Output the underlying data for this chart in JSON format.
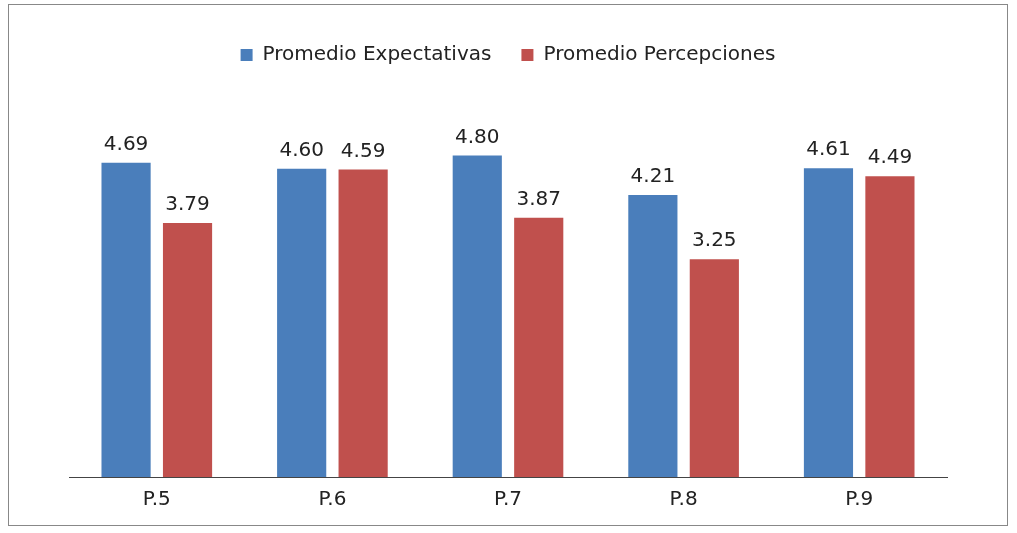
{
  "chart_data": {
    "type": "bar",
    "categories": [
      "P.5",
      "P.6",
      "P.7",
      "P.8",
      "P.9"
    ],
    "series": [
      {
        "name": "Promedio Expectativas",
        "color": "#4a7ebb",
        "values": [
          4.69,
          4.6,
          4.8,
          4.21,
          4.61
        ],
        "value_labels": [
          "4.69",
          "4.60",
          "4.80",
          "4.21",
          "4.61"
        ]
      },
      {
        "name": "Promedio Percepciones",
        "color": "#c0504d",
        "values": [
          3.79,
          4.59,
          3.87,
          3.25,
          4.49
        ],
        "value_labels": [
          "3.79",
          "4.59",
          "3.87",
          "3.25",
          "4.49"
        ]
      }
    ],
    "legend": "top",
    "grid": false
  }
}
